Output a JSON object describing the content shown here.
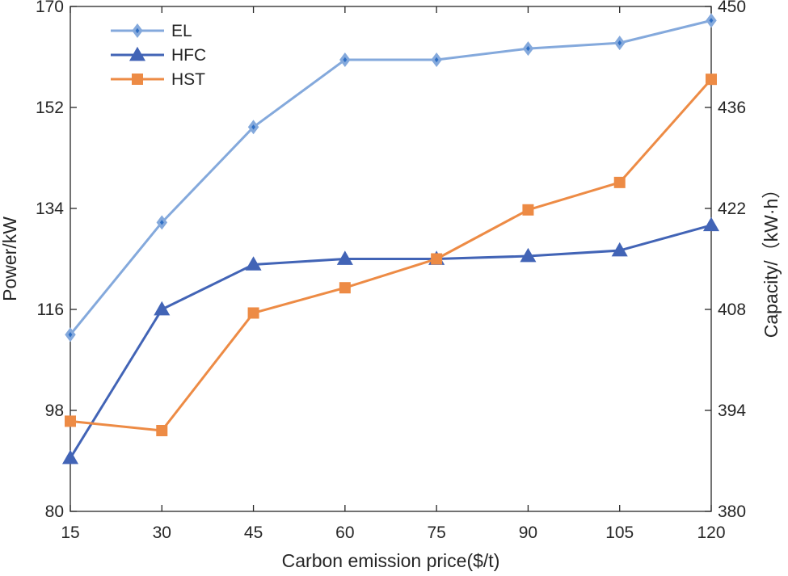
{
  "chart_data": {
    "type": "line",
    "x": [
      15,
      30,
      45,
      60,
      75,
      90,
      105,
      120
    ],
    "xlabel": "Carbon emission price($/t)",
    "ylabel_left": "Power/kW",
    "ylabel_right": "Capacity/（kW·h）",
    "xlim": [
      15,
      120
    ],
    "ylim_left": [
      80,
      170
    ],
    "ylim_right": [
      380,
      450
    ],
    "xticks": [
      "15",
      "30",
      "45",
      "60",
      "75",
      "90",
      "105",
      "120"
    ],
    "yticks_left": [
      "80",
      "98",
      "116",
      "134",
      "152",
      "170"
    ],
    "yticks_right": [
      "380",
      "394",
      "408",
      "422",
      "436",
      "450"
    ],
    "legend_position": "top-left",
    "series": [
      {
        "name": "EL",
        "axis": "left",
        "marker": "diamond",
        "color": "#84a9dc",
        "inner_color": "#2f6fc4",
        "values": [
          111.5,
          131.5,
          148.5,
          160.5,
          160.5,
          162.5,
          163.5,
          167.5
        ]
      },
      {
        "name": "HFC",
        "axis": "left",
        "marker": "triangle",
        "color": "#4264b6",
        "values": [
          89.5,
          116,
          124,
          125,
          125,
          125.5,
          126.5,
          131
        ]
      },
      {
        "name": "HST",
        "axis": "right",
        "marker": "square",
        "color": "#ed8b45",
        "values": [
          392.5,
          391.2,
          407.5,
          411,
          415,
          421.8,
          425.6,
          439.9
        ]
      }
    ]
  }
}
